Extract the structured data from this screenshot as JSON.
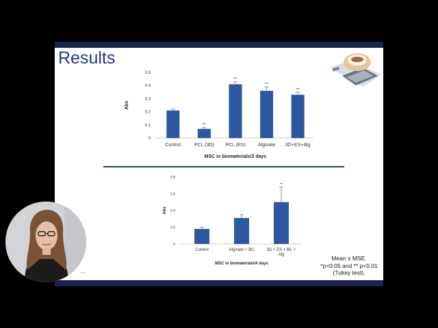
{
  "slide": {
    "title": "Results",
    "note_lines": [
      "Mean ± MSE.",
      "*p<0.05 and ** p<0.01",
      "(Tukey test)."
    ]
  },
  "colors": {
    "bar": "#2c58a0",
    "frame": "#16254d",
    "title": "#1f3a7a",
    "background": "#000000"
  },
  "icons": {
    "decor": "cup-and-saucer-decoration-icon",
    "webcam_menu": "more-options-icon"
  },
  "webcam": {
    "menu_label": "···"
  },
  "chart_data": [
    {
      "type": "bar",
      "title": "",
      "xlabel": "MSC in biomaterials/3 days",
      "ylabel": "Abs",
      "ylim": [
        0,
        0.5
      ],
      "yticks": [
        "0",
        "0.1",
        "0.2",
        "0.3",
        "0.4",
        "0.5"
      ],
      "categories": [
        "Control",
        "PCL (3D)",
        "PCL (ES)",
        "Alginate",
        "3D+ES+Alg"
      ],
      "values": [
        0.21,
        0.07,
        0.41,
        0.36,
        0.33
      ],
      "errors": [
        0.01,
        0.01,
        0.02,
        0.03,
        0.02
      ],
      "annotations": [
        "",
        "**",
        "**",
        "**",
        "**"
      ],
      "grid": false
    },
    {
      "type": "bar",
      "title": "",
      "xlabel": "MSC in biomaterials/4 days",
      "ylabel": "Abs",
      "ylim": [
        0,
        0.8
      ],
      "yticks": [
        "0",
        "0.2",
        "0.4",
        "0.6",
        "0.8"
      ],
      "categories": [
        "Control",
        "Alginate + BC",
        "3D + ES + BC + Alg"
      ],
      "values": [
        0.18,
        0.31,
        0.5
      ],
      "errors": [
        0.02,
        0.04,
        0.18
      ],
      "annotations": [
        "",
        "",
        "**"
      ],
      "grid": false
    }
  ]
}
